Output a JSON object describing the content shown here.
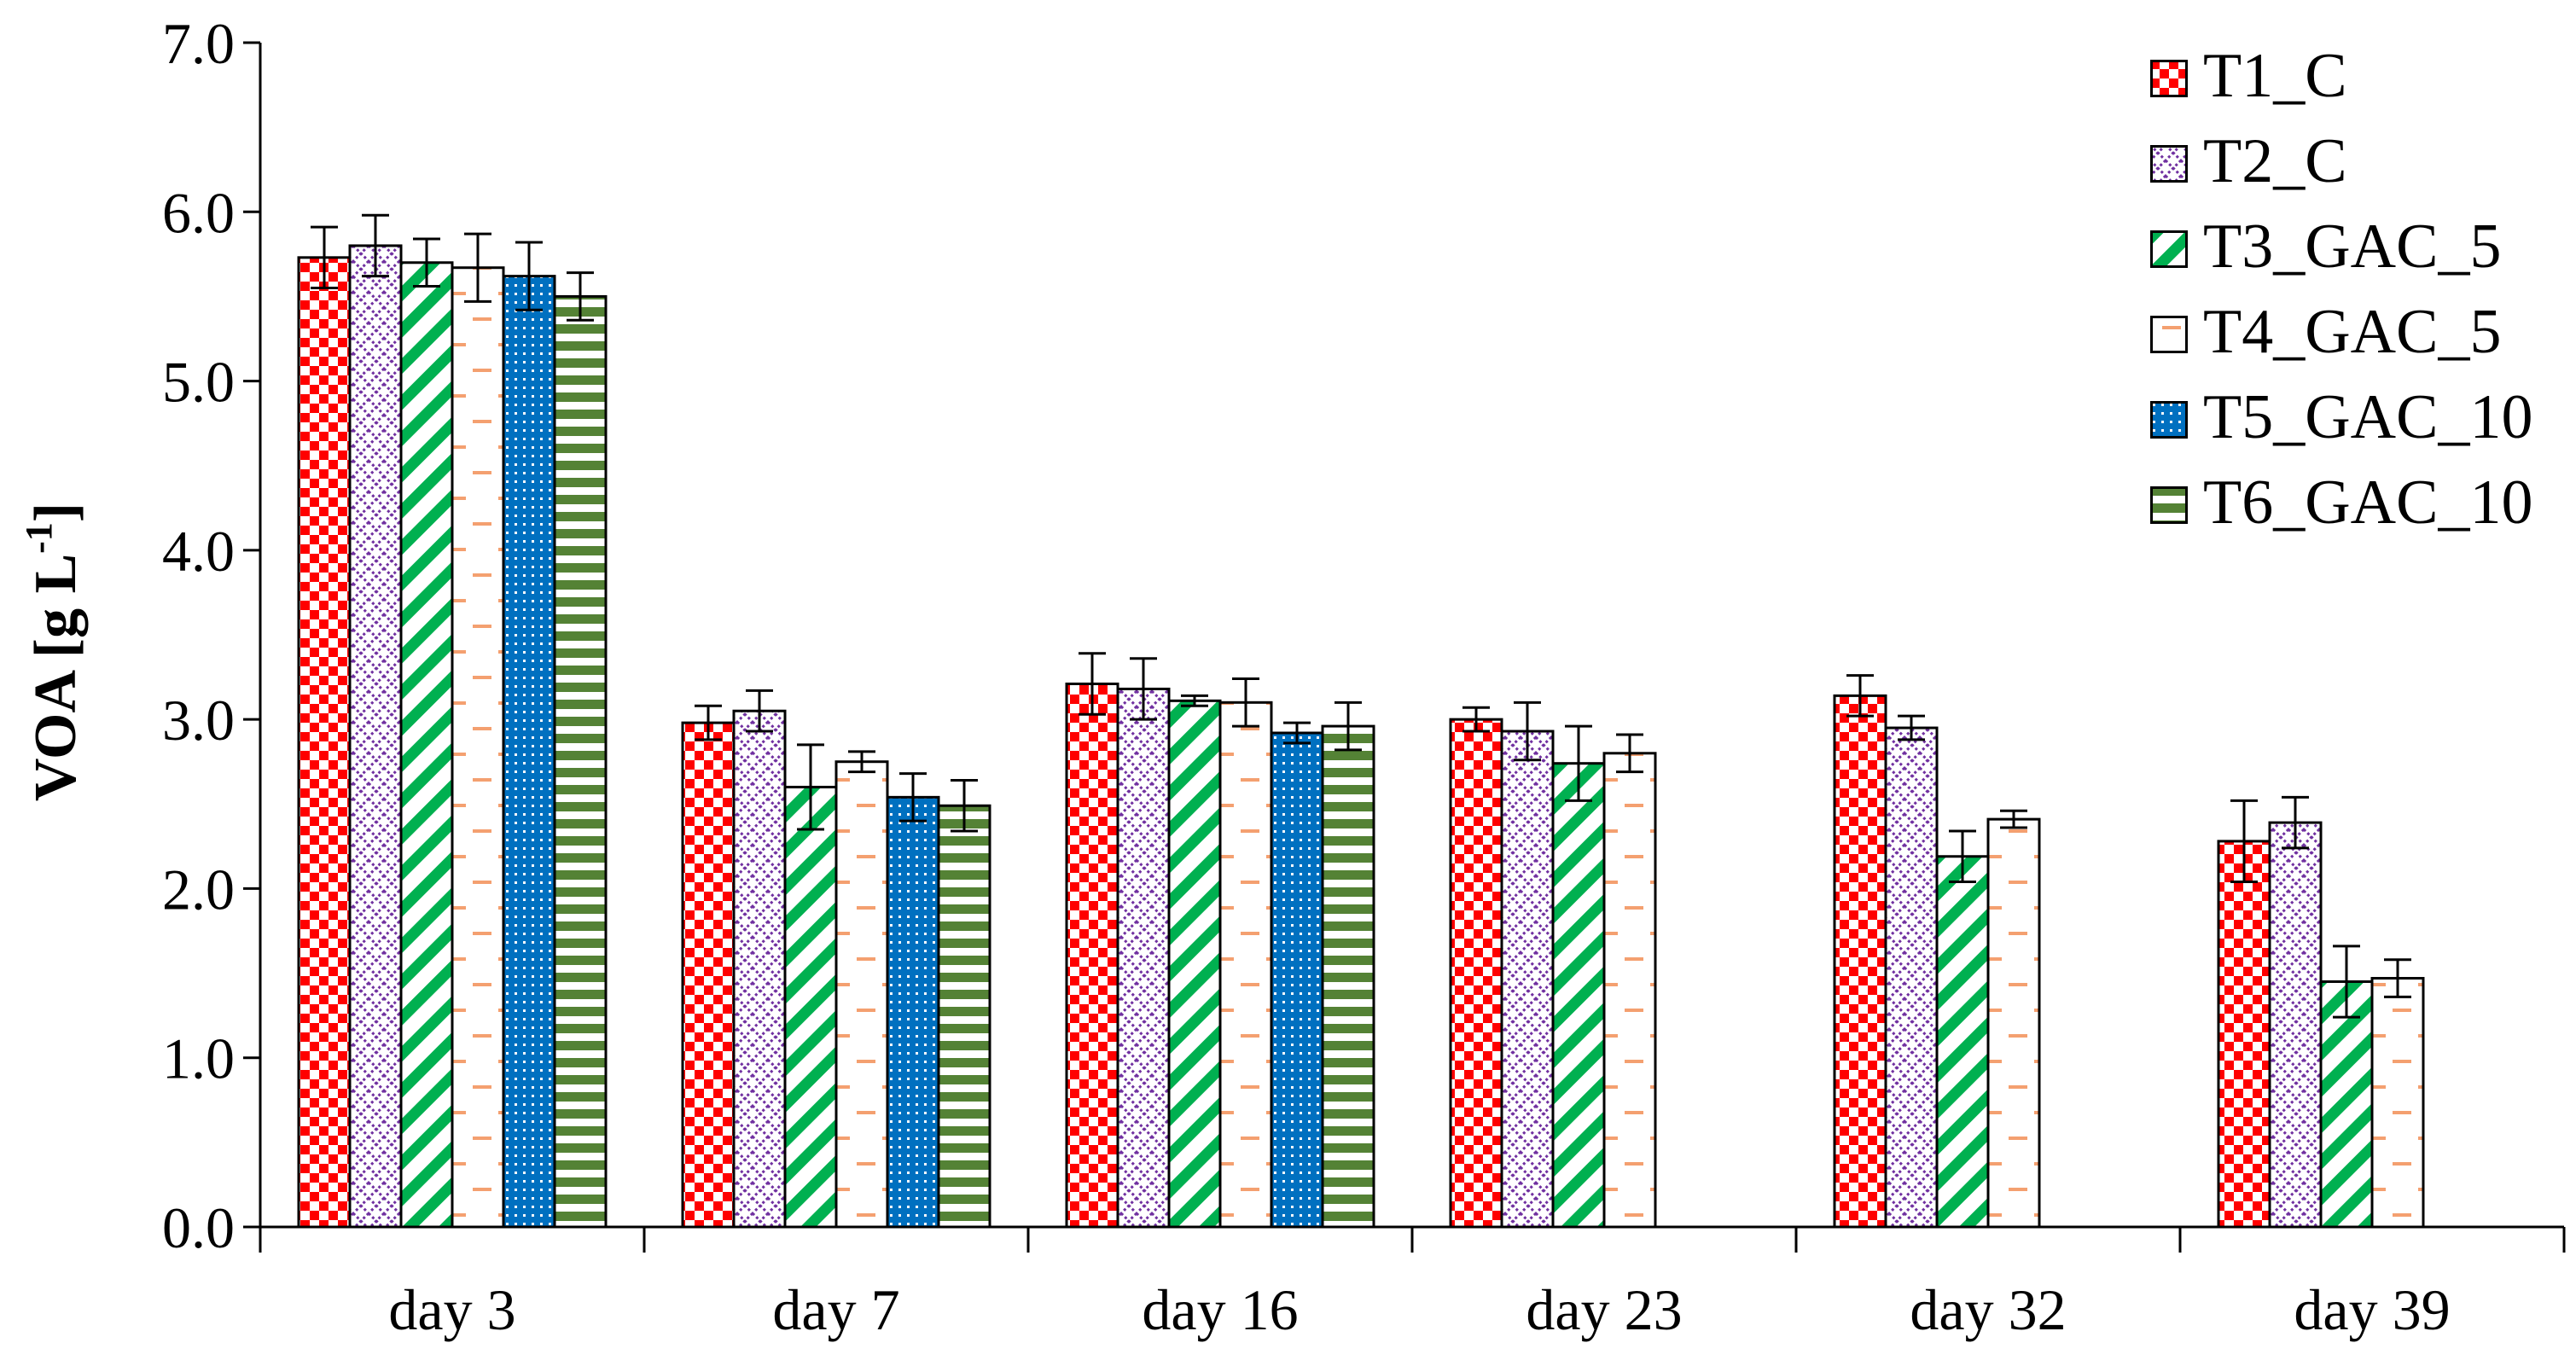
{
  "chart_data": {
    "type": "bar",
    "title": "",
    "xlabel": "",
    "ylabel": "VOA [g L",
    "ylabel_superscript": "-1",
    "ylabel_close": "]",
    "ylim": [
      0,
      7
    ],
    "y_ticks": [
      "0.0",
      "1.0",
      "2.0",
      "3.0",
      "4.0",
      "5.0",
      "6.0",
      "7.0"
    ],
    "categories": [
      "day 3",
      "day 7",
      "day 16",
      "day 23",
      "day 32",
      "day 39"
    ],
    "legend_position": "top-right",
    "series": [
      {
        "name": "T1_C",
        "pattern": "checker",
        "color": "#ff0000",
        "values": [
          5.73,
          2.98,
          3.21,
          3.0,
          3.14,
          2.28
        ],
        "errors": [
          0.18,
          0.1,
          0.18,
          0.07,
          0.12,
          0.24
        ]
      },
      {
        "name": "T2_C",
        "pattern": "crosshatch",
        "color": "#7030a0",
        "values": [
          5.8,
          3.05,
          3.18,
          2.93,
          2.95,
          2.39
        ],
        "errors": [
          0.18,
          0.12,
          0.18,
          0.17,
          0.07,
          0.15
        ]
      },
      {
        "name": "T3_GAC_5",
        "pattern": "diagonal",
        "color": "#00b050",
        "values": [
          5.7,
          2.6,
          3.11,
          2.74,
          2.19,
          1.45
        ],
        "errors": [
          0.14,
          0.25,
          0.03,
          0.22,
          0.15,
          0.21
        ]
      },
      {
        "name": "T4_GAC_5",
        "pattern": "dashes",
        "color": "#f4a070",
        "values": [
          5.67,
          2.75,
          3.1,
          2.8,
          2.41,
          1.47
        ],
        "errors": [
          0.2,
          0.06,
          0.14,
          0.11,
          0.05,
          0.11
        ]
      },
      {
        "name": "T5_GAC_10",
        "pattern": "dots",
        "color": "#0070c0",
        "values": [
          5.62,
          2.54,
          2.92,
          null,
          null,
          null
        ],
        "errors": [
          0.2,
          0.14,
          0.06,
          null,
          null,
          null
        ]
      },
      {
        "name": "T6_GAC_10",
        "pattern": "hstripes",
        "color": "#548235",
        "values": [
          5.5,
          2.49,
          2.96,
          null,
          null,
          null
        ],
        "errors": [
          0.14,
          0.15,
          0.14,
          null,
          null,
          null
        ]
      }
    ]
  }
}
